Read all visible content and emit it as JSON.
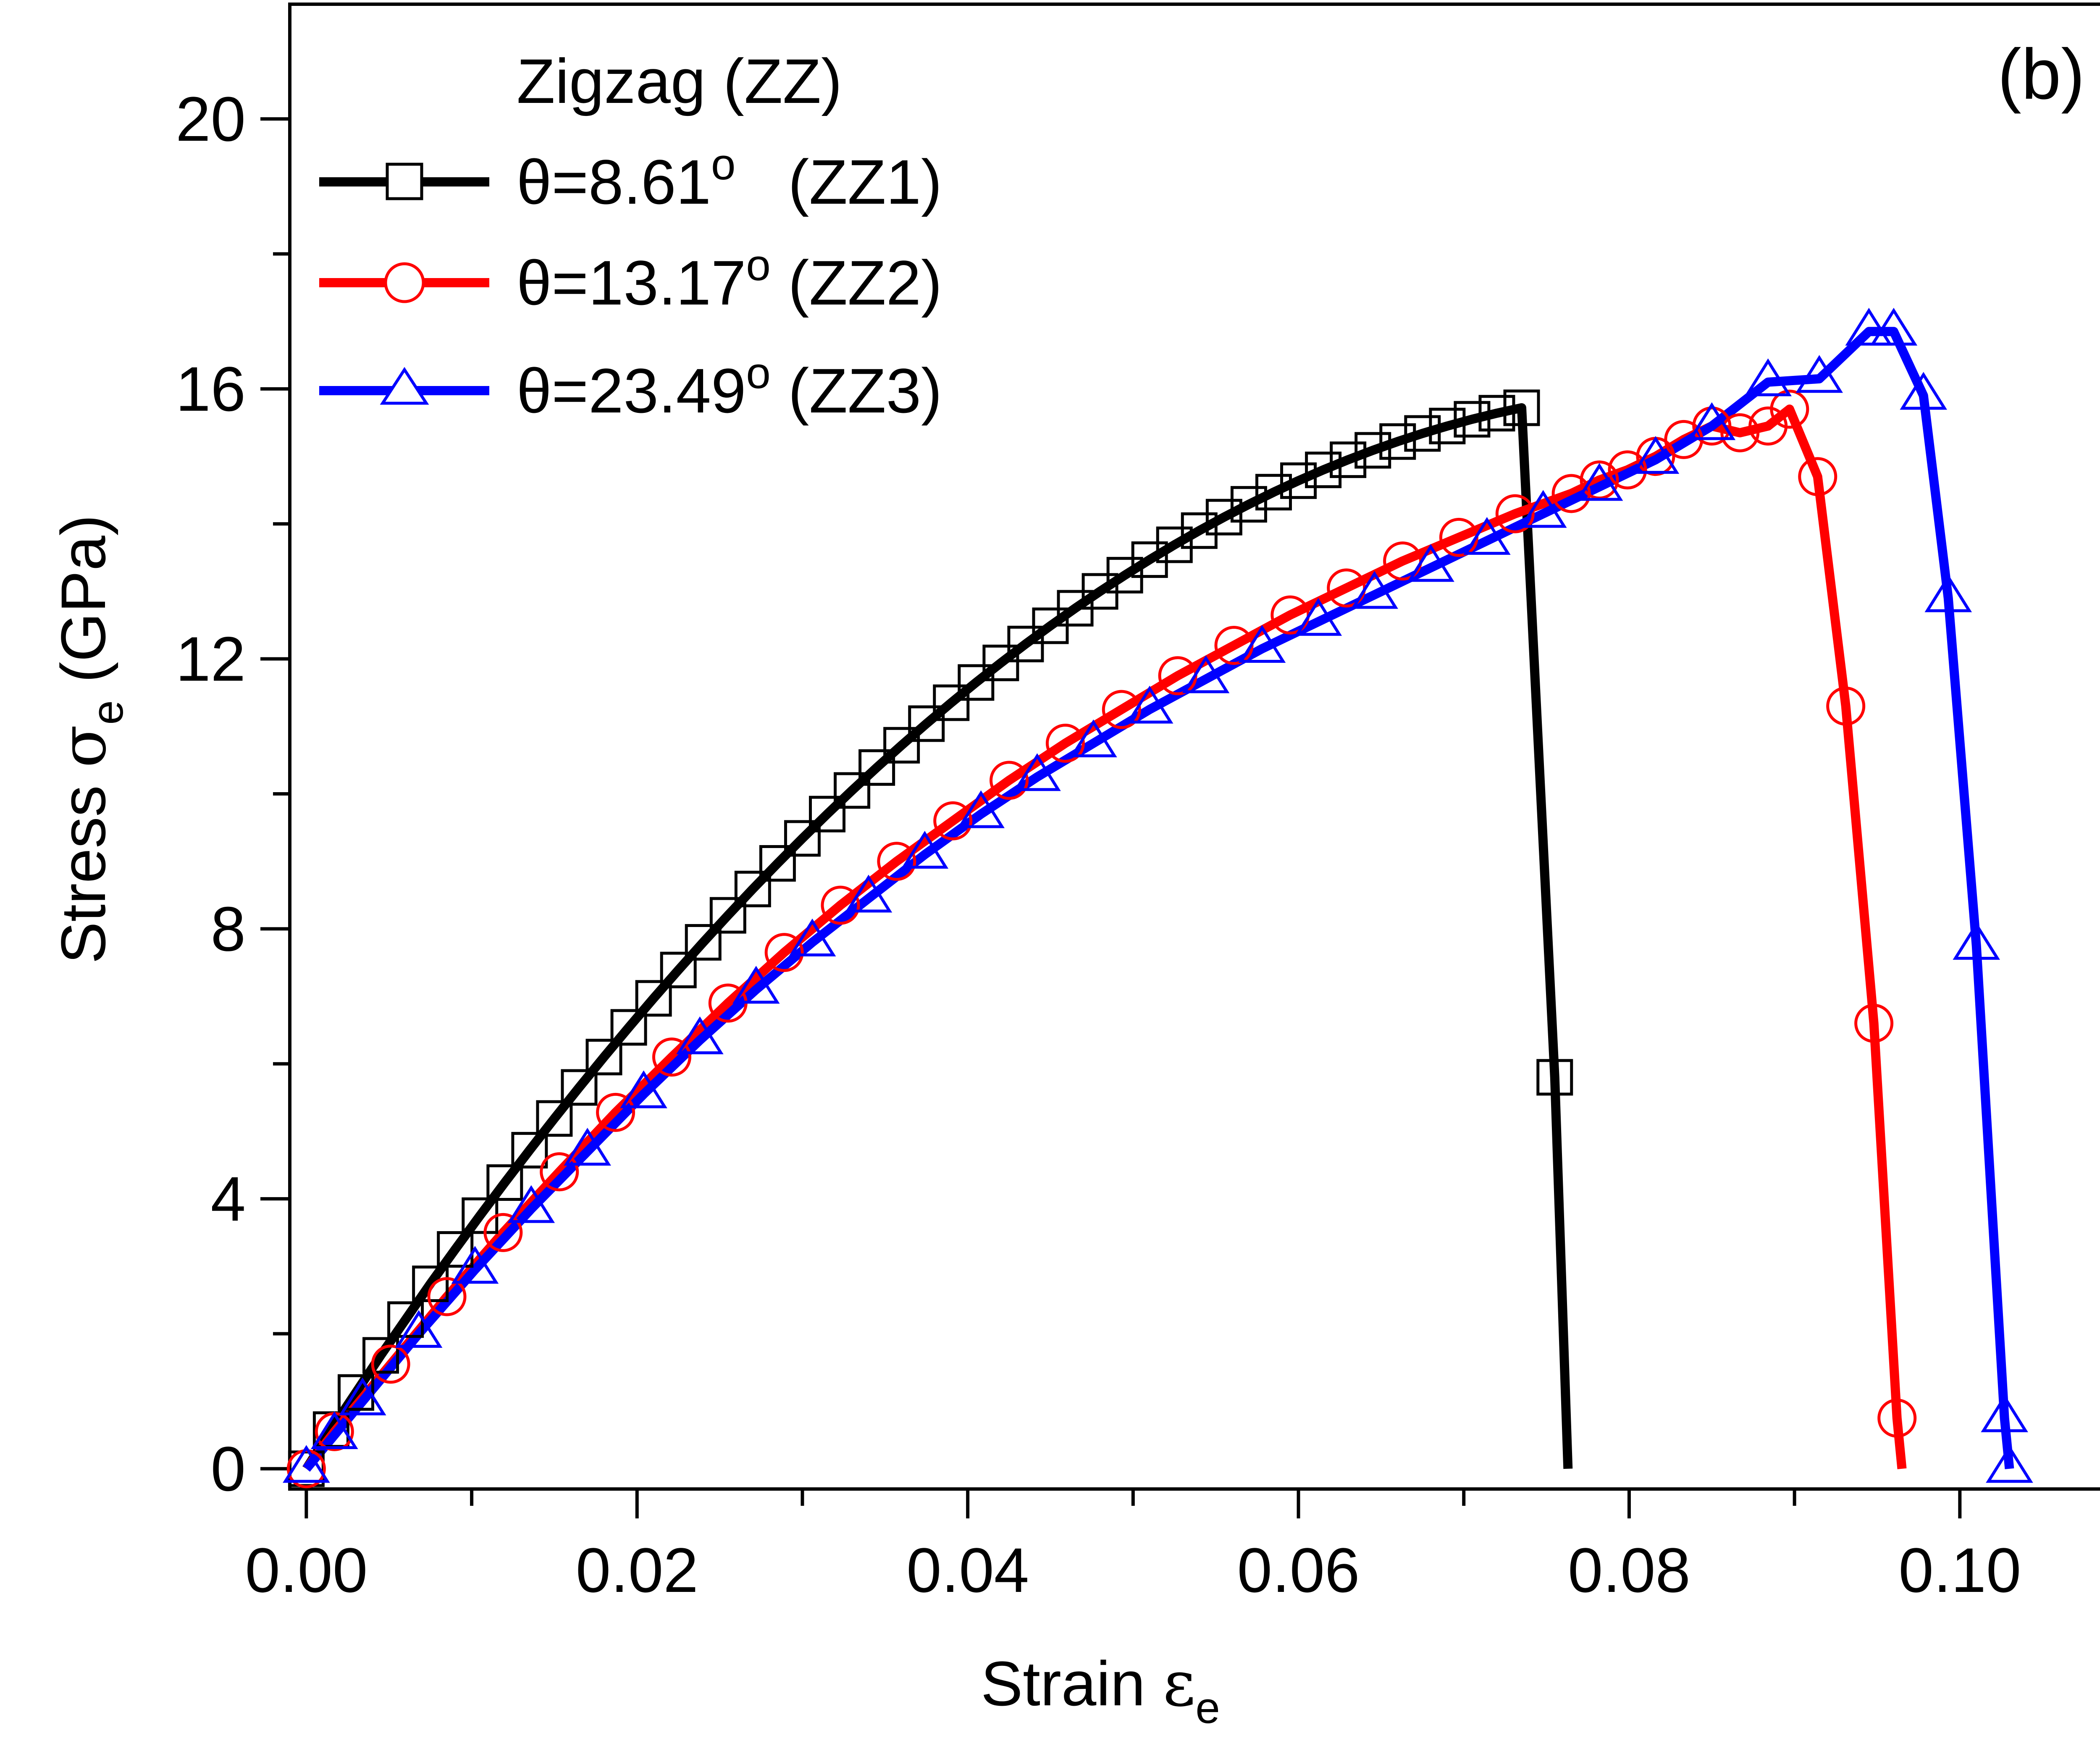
{
  "chart_data": {
    "type": "line",
    "panel_label": "(b)",
    "legend_title": "Zigzag (ZZ)",
    "xlabel": {
      "main": "Strain ",
      "symbol": "ε",
      "subscript": "e"
    },
    "ylabel": {
      "main": "Stress ",
      "symbol": "σ",
      "subscript": "e",
      "unit": " (GPa)"
    },
    "xlim": [
      -0.001,
      0.11
    ],
    "ylim": [
      -0.3,
      21.7
    ],
    "xticks": [
      0.0,
      0.02,
      0.04,
      0.06,
      0.08,
      0.1
    ],
    "xtick_labels": [
      "0.00",
      "0.02",
      "0.04",
      "0.06",
      "0.08",
      "0.10"
    ],
    "yticks": [
      0,
      4,
      8,
      12,
      16,
      20
    ],
    "ytick_labels": [
      "0",
      "4",
      "8",
      "12",
      "16",
      "20"
    ],
    "x_minor_step": 0.01,
    "y_minor_step": 2,
    "legend_position": "top-left",
    "series": [
      {
        "name": "θ=8.61o   (ZZ1)",
        "label_main": "θ=8.61",
        "label_sup": "o",
        "label_rest": "   (ZZ1)",
        "color": "#000000",
        "marker": "square",
        "x": [
          0.0,
          0.0015,
          0.003,
          0.0045,
          0.006,
          0.0075,
          0.009,
          0.0105,
          0.012,
          0.0135,
          0.015,
          0.0165,
          0.018,
          0.0195,
          0.021,
          0.0225,
          0.024,
          0.0255,
          0.027,
          0.0285,
          0.03,
          0.0315,
          0.033,
          0.0345,
          0.036,
          0.0375,
          0.039,
          0.0405,
          0.042,
          0.0435,
          0.045,
          0.0465,
          0.048,
          0.0495,
          0.051,
          0.0525,
          0.054,
          0.0555,
          0.057,
          0.0585,
          0.06,
          0.0615,
          0.063,
          0.0645,
          0.066,
          0.0675,
          0.069,
          0.0705,
          0.072,
          0.0735,
          0.0755,
          0.0763
        ],
        "y": [
          0.0,
          0.58,
          1.13,
          1.68,
          2.21,
          2.74,
          3.25,
          3.75,
          4.24,
          4.72,
          5.19,
          5.65,
          6.1,
          6.54,
          6.97,
          7.39,
          7.8,
          8.2,
          8.59,
          8.97,
          9.34,
          9.7,
          10.05,
          10.39,
          10.72,
          11.04,
          11.35,
          11.65,
          11.94,
          12.22,
          12.49,
          12.75,
          13.0,
          13.24,
          13.47,
          13.69,
          13.9,
          14.1,
          14.29,
          14.47,
          14.64,
          14.8,
          14.95,
          15.09,
          15.22,
          15.34,
          15.45,
          15.55,
          15.64,
          15.72,
          5.8,
          0.0
        ],
        "markers_end_index": 50
      },
      {
        "name": "θ=13.17o (ZZ2)",
        "label_main": "θ=13.17",
        "label_sup": "o",
        "label_rest": " (ZZ2)",
        "color": "#ff0000",
        "marker": "circle",
        "x": [
          0.0,
          0.0017,
          0.0051,
          0.0085,
          0.0119,
          0.0153,
          0.0187,
          0.0221,
          0.0255,
          0.0289,
          0.0323,
          0.0357,
          0.0391,
          0.0425,
          0.0459,
          0.0493,
          0.0527,
          0.0561,
          0.0595,
          0.0629,
          0.0663,
          0.0697,
          0.0731,
          0.0765,
          0.0782,
          0.0799,
          0.0816,
          0.0833,
          0.085,
          0.0867,
          0.0884,
          0.0897,
          0.0914,
          0.0931,
          0.0948,
          0.0962,
          0.0965
        ],
        "y": [
          0.0,
          0.55,
          1.55,
          2.55,
          3.5,
          4.4,
          5.28,
          6.1,
          6.9,
          7.65,
          8.35,
          9.0,
          9.6,
          10.2,
          10.75,
          11.25,
          11.75,
          12.2,
          12.65,
          13.05,
          13.45,
          13.8,
          14.15,
          14.45,
          14.65,
          14.8,
          15.0,
          15.25,
          15.45,
          15.35,
          15.45,
          15.7,
          14.7,
          11.3,
          6.6,
          0.75,
          0.0
        ],
        "markers_end_index": 35
      },
      {
        "name": "θ=23.49o (ZZ3)",
        "label_main": "θ=23.49",
        "label_sup": "o",
        "label_rest": " (ZZ3)",
        "color": "#0000ff",
        "marker": "triangle",
        "x": [
          0.0,
          0.0017,
          0.0034,
          0.0068,
          0.0102,
          0.0136,
          0.017,
          0.0204,
          0.0238,
          0.0272,
          0.0306,
          0.034,
          0.0374,
          0.0408,
          0.0442,
          0.0476,
          0.051,
          0.0544,
          0.0578,
          0.0612,
          0.0646,
          0.068,
          0.0714,
          0.0748,
          0.0782,
          0.0816,
          0.085,
          0.0884,
          0.0915,
          0.0945,
          0.096,
          0.0978,
          0.0993,
          0.101,
          0.1027,
          0.103
        ],
        "y": [
          0.0,
          0.5,
          1.0,
          2.0,
          2.95,
          3.85,
          4.7,
          5.55,
          6.35,
          7.1,
          7.8,
          8.45,
          9.1,
          9.7,
          10.25,
          10.75,
          11.25,
          11.7,
          12.15,
          12.55,
          12.95,
          13.35,
          13.75,
          14.15,
          14.55,
          14.95,
          15.45,
          16.1,
          16.15,
          16.85,
          16.85,
          15.9,
          12.9,
          7.75,
          0.75,
          0.0
        ],
        "markers_end_index": 35
      }
    ]
  }
}
